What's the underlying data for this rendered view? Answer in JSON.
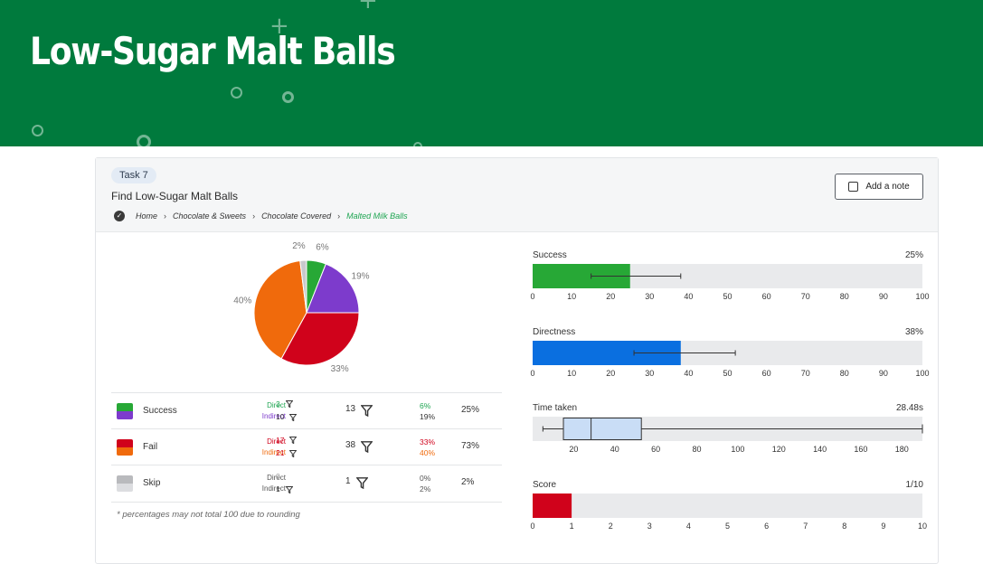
{
  "banner": {
    "title": "Low-Sugar Malt Balls"
  },
  "task": {
    "pill": "Task 7",
    "title": "Find Low-Sugar Malt Balls",
    "breadcrumb": [
      "Home",
      "Chocolate & Sweets",
      "Chocolate Covered",
      "Malted Milk Balls"
    ],
    "add_note": "Add a note"
  },
  "colors": {
    "banner": "#007a3d",
    "direct_success": "#27a836",
    "indirect_success": "#7d3bcc",
    "direct_fail": "#d0021b",
    "indirect_fail": "#f06a0c",
    "skip": "#c8c9cc",
    "directness": "#0a6fe0",
    "time_fill": "#c9ddf6"
  },
  "chart_data": [
    {
      "type": "pie",
      "slices": [
        {
          "label": "6%",
          "value": 6,
          "color": "#27a836"
        },
        {
          "label": "19%",
          "value": 19,
          "color": "#7d3bcc"
        },
        {
          "label": "33%",
          "value": 33,
          "color": "#d0021b"
        },
        {
          "label": "40%",
          "value": 40,
          "color": "#f06a0c"
        },
        {
          "label": "2%",
          "value": 2,
          "color": "#c8c9cc"
        }
      ]
    },
    {
      "type": "bar",
      "title": "Success",
      "value_label": "25%",
      "value": 25,
      "error_range": [
        15,
        38
      ],
      "xlim": [
        0,
        100
      ],
      "ticks": [
        "0",
        "10",
        "20",
        "30",
        "40",
        "50",
        "60",
        "70",
        "80",
        "90",
        "100"
      ]
    },
    {
      "type": "bar",
      "title": "Directness",
      "value_label": "38%",
      "value": 38,
      "error_range": [
        26,
        52
      ],
      "xlim": [
        0,
        100
      ],
      "ticks": [
        "0",
        "10",
        "20",
        "30",
        "40",
        "50",
        "60",
        "70",
        "80",
        "90",
        "100"
      ]
    },
    {
      "type": "boxplot",
      "title": "Time taken",
      "value_label": "28.48s",
      "whisker_low": 5,
      "q1": 15,
      "median": 28.48,
      "q3": 53,
      "whisker_high": 190,
      "xlim": [
        0,
        190
      ],
      "ticks": [
        "20",
        "40",
        "60",
        "80",
        "100",
        "120",
        "140",
        "160",
        "180"
      ]
    },
    {
      "type": "bar",
      "title": "Score",
      "value_label": "1/10",
      "value": 1,
      "xlim": [
        0,
        10
      ],
      "ticks": [
        "0",
        "1",
        "2",
        "3",
        "4",
        "5",
        "6",
        "7",
        "8",
        "9",
        "10"
      ]
    }
  ],
  "results": {
    "rows": [
      {
        "label": "Success",
        "direct_label": "Direct",
        "indirect_label": "Indirect",
        "direct_count": "3",
        "indirect_count": "10",
        "total": "13",
        "direct_pct": "6%",
        "indirect_pct": "19%",
        "total_pct": "25%"
      },
      {
        "label": "Fail",
        "direct_label": "Direct",
        "indirect_label": "Indirect",
        "direct_count": "17",
        "indirect_count": "21",
        "total": "38",
        "direct_pct": "33%",
        "indirect_pct": "40%",
        "total_pct": "73%"
      },
      {
        "label": "Skip",
        "direct_label": "Direct",
        "indirect_label": "Indirect",
        "direct_count": "0",
        "indirect_count": "1",
        "total": "1",
        "direct_pct": "0%",
        "indirect_pct": "2%",
        "total_pct": "2%"
      }
    ],
    "footnote": "* percentages may not total 100 due to rounding"
  }
}
